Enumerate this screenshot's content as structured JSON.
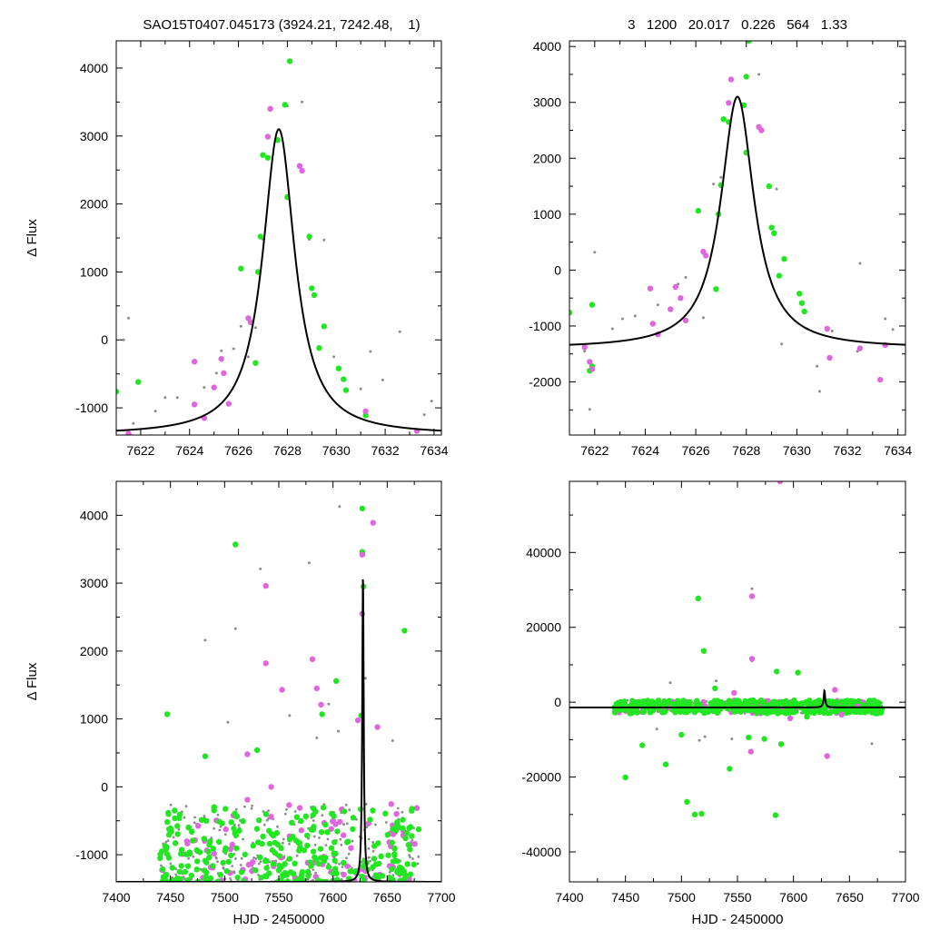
{
  "header": {
    "left_title": "SAO15T0407.045173 (3924.21, 7242.48,    1)",
    "right_title": "3   1200   20.017   0.226   564   1.33"
  },
  "colors": {
    "grey": "#8c8c8c",
    "green": "#22e622",
    "magenta": "#e066dd",
    "curve": "#000000"
  },
  "chart_data": [
    {
      "type": "scatter",
      "panel": "top-left",
      "xlabel": "",
      "ylabel": "Δ Flux",
      "xlim": [
        7621,
        7634.3
      ],
      "ylim": [
        -1400,
        4400
      ],
      "xticks": [
        7622,
        7624,
        7626,
        7628,
        7630,
        7632,
        7634
      ],
      "yticks": [
        -1000,
        0,
        1000,
        2000,
        3000,
        4000
      ],
      "model": {
        "t0": 7627.65,
        "peak": 3100,
        "base": -1400
      },
      "series": [
        {
          "color": "grey",
          "points": [
            [
              7621.3,
              0
            ],
            [
              7621.5,
              320
            ],
            [
              7621.7,
              -1230
            ],
            [
              7622.6,
              -1050
            ],
            [
              7623.0,
              -850
            ],
            [
              7623.5,
              -850
            ],
            [
              7624.6,
              -700
            ],
            [
              7625.1,
              -490
            ],
            [
              7625.3,
              -160
            ],
            [
              7625.8,
              -130
            ],
            [
              7626.1,
              200
            ],
            [
              7626.4,
              -250
            ],
            [
              7626.7,
              180
            ],
            [
              7627.0,
              1480
            ],
            [
              7628.0,
              3440
            ],
            [
              7628.6,
              3500
            ],
            [
              7628.9,
              1480
            ],
            [
              7629.5,
              1470
            ],
            [
              7629.9,
              -250
            ],
            [
              7631.0,
              -720
            ],
            [
              7631.4,
              -170
            ],
            [
              7631.9,
              -590
            ],
            [
              7632.6,
              120
            ],
            [
              7633.6,
              -1100
            ],
            [
              7633.9,
              -900
            ]
          ]
        },
        {
          "color": "green",
          "points": [
            [
              7621.0,
              -760
            ],
            [
              7621.9,
              -620
            ],
            [
              7626.1,
              1050
            ],
            [
              7626.7,
              -340
            ],
            [
              7626.8,
              1000
            ],
            [
              7626.9,
              1520
            ],
            [
              7627.0,
              2720
            ],
            [
              7627.2,
              2680
            ],
            [
              7627.6,
              2940
            ],
            [
              7627.9,
              3460
            ],
            [
              7628.0,
              2100
            ],
            [
              7628.1,
              4100
            ],
            [
              7628.9,
              1520
            ],
            [
              7629.0,
              760
            ],
            [
              7629.1,
              660
            ],
            [
              7629.3,
              -120
            ],
            [
              7629.5,
              200
            ],
            [
              7630.1,
              -420
            ],
            [
              7630.3,
              -580
            ],
            [
              7630.4,
              -740
            ],
            [
              7631.2,
              -1110
            ]
          ]
        },
        {
          "color": "magenta",
          "points": [
            [
              7621.5,
              -1380
            ],
            [
              7624.2,
              -320
            ],
            [
              7624.2,
              -950
            ],
            [
              7624.6,
              -1150
            ],
            [
              7625.0,
              -700
            ],
            [
              7625.3,
              -280
            ],
            [
              7625.4,
              -490
            ],
            [
              7625.6,
              -940
            ],
            [
              7626.4,
              320
            ],
            [
              7626.5,
              260
            ],
            [
              7627.2,
              2990
            ],
            [
              7627.3,
              3400
            ],
            [
              7628.5,
              2560
            ],
            [
              7628.6,
              2490
            ],
            [
              7631.2,
              -1050
            ],
            [
              7633.3,
              -1340
            ]
          ]
        }
      ]
    },
    {
      "type": "scatter",
      "panel": "top-right",
      "xlabel": "",
      "ylabel": "",
      "xlim": [
        7621,
        7634.3
      ],
      "ylim": [
        -2950,
        4100
      ],
      "xticks": [
        7622,
        7624,
        7626,
        7628,
        7630,
        7632,
        7634
      ],
      "yticks": [
        -2000,
        -1000,
        0,
        1000,
        2000,
        3000,
        4000
      ],
      "model": {
        "t0": 7627.65,
        "peak": 3100,
        "base": -1400
      },
      "series": [
        {
          "color": "grey",
          "points": [
            [
              7621.6,
              -1450
            ],
            [
              7621.8,
              -2490
            ],
            [
              7622.0,
              320
            ],
            [
              7622.7,
              -1050
            ],
            [
              7623.1,
              -870
            ],
            [
              7623.6,
              -820
            ],
            [
              7624.5,
              -620
            ],
            [
              7625.3,
              -250
            ],
            [
              7625.6,
              -130
            ],
            [
              7626.3,
              -850
            ],
            [
              7626.7,
              1540
            ],
            [
              7627.0,
              1660
            ],
            [
              7628.0,
              3440
            ],
            [
              7628.5,
              3500
            ],
            [
              7629.2,
              1450
            ],
            [
              7629.4,
              -1320
            ],
            [
              7630.4,
              -1050
            ],
            [
              7630.8,
              -1720
            ],
            [
              7630.9,
              -2170
            ],
            [
              7631.4,
              -1090
            ],
            [
              7632.5,
              120
            ],
            [
              7632.4,
              -1450
            ],
            [
              7633.5,
              -870
            ],
            [
              7633.8,
              -1060
            ]
          ]
        },
        {
          "color": "green",
          "points": [
            [
              7621.0,
              -760
            ],
            [
              7621.9,
              -620
            ],
            [
              7621.8,
              -1800
            ],
            [
              7621.9,
              -1720
            ],
            [
              7626.1,
              1060
            ],
            [
              7626.8,
              -340
            ],
            [
              7626.9,
              1000
            ],
            [
              7627.0,
              1520
            ],
            [
              7627.1,
              2700
            ],
            [
              7627.3,
              2650
            ],
            [
              7627.9,
              2950
            ],
            [
              7628.0,
              3460
            ],
            [
              7628.0,
              2100
            ],
            [
              7628.1,
              4100
            ],
            [
              7628.9,
              1500
            ],
            [
              7629.0,
              760
            ],
            [
              7629.1,
              660
            ],
            [
              7629.3,
              -100
            ],
            [
              7629.5,
              200
            ],
            [
              7630.1,
              -420
            ],
            [
              7630.2,
              -590
            ],
            [
              7630.3,
              -740
            ]
          ]
        },
        {
          "color": "magenta",
          "points": [
            [
              7621.6,
              -1380
            ],
            [
              7621.8,
              -1640
            ],
            [
              7621.9,
              -1770
            ],
            [
              7624.2,
              -330
            ],
            [
              7624.3,
              -960
            ],
            [
              7624.5,
              -1150
            ],
            [
              7625.0,
              -700
            ],
            [
              7625.2,
              -300
            ],
            [
              7625.4,
              -500
            ],
            [
              7625.6,
              -900
            ],
            [
              7626.3,
              330
            ],
            [
              7626.4,
              260
            ],
            [
              7627.3,
              2990
            ],
            [
              7627.4,
              3410
            ],
            [
              7628.5,
              2560
            ],
            [
              7628.6,
              2500
            ],
            [
              7631.2,
              -1050
            ],
            [
              7631.3,
              -1570
            ],
            [
              7632.5,
              -1400
            ],
            [
              7633.3,
              -1960
            ],
            [
              7633.5,
              -1340
            ]
          ]
        }
      ]
    },
    {
      "type": "scatter",
      "panel": "bottom-left",
      "xlabel": "HJD - 2450000",
      "ylabel": "Δ Flux",
      "xlim": [
        7400,
        7700
      ],
      "ylim": [
        -1400,
        4500
      ],
      "xticks": [
        7400,
        7450,
        7500,
        7550,
        7600,
        7650,
        7700
      ],
      "yticks": [
        -1000,
        0,
        1000,
        2000,
        3000,
        4000
      ],
      "model": {
        "t0": 7627.65,
        "peak": 3100,
        "base": -1400
      },
      "cloud": {
        "x": [
          7440,
          7680
        ],
        "y": [
          -1400,
          -250
        ],
        "counts": {
          "grey": 260,
          "green": 300,
          "magenta": 80
        }
      },
      "series": [
        {
          "color": "grey",
          "points": [
            [
              7482,
              2160
            ],
            [
              7510,
              2330
            ],
            [
              7533,
              3210
            ],
            [
              7578,
              3300
            ],
            [
              7606,
              4130
            ],
            [
              7503,
              950
            ],
            [
              7560,
              1050
            ],
            [
              7585,
              720
            ],
            [
              7630,
              1600
            ],
            [
              7655,
              680
            ],
            [
              7596,
              1220
            ],
            [
              7605,
              820
            ]
          ]
        },
        {
          "color": "green",
          "points": [
            [
              7447,
              1070
            ],
            [
              7510,
              3570
            ],
            [
              7627,
              4100
            ],
            [
              7627,
              3460
            ],
            [
              7628,
              2950
            ],
            [
              7666,
              2300
            ],
            [
              7603,
              1560
            ],
            [
              7590,
              1070
            ],
            [
              7626,
              1050
            ],
            [
              7530,
              540
            ],
            [
              7482,
              450
            ]
          ]
        },
        {
          "color": "magenta",
          "points": [
            [
              7637,
              3890
            ],
            [
              7627,
              3420
            ],
            [
              7627,
              2550
            ],
            [
              7538,
              2960
            ],
            [
              7538,
              1820
            ],
            [
              7581,
              1880
            ],
            [
              7585,
              1450
            ],
            [
              7589,
              1210
            ],
            [
              7641,
              880
            ],
            [
              7623,
              980
            ],
            [
              7521,
              480
            ],
            [
              7543,
              0
            ],
            [
              7521,
              -190
            ],
            [
              7553,
              1430
            ]
          ]
        }
      ]
    },
    {
      "type": "scatter",
      "panel": "bottom-right",
      "xlabel": "HJD - 2450000",
      "ylabel": "",
      "xlim": [
        7400,
        7700
      ],
      "ylim": [
        -48000,
        59000
      ],
      "xticks": [
        7400,
        7450,
        7500,
        7550,
        7600,
        7650,
        7700
      ],
      "yticks": [
        -40000,
        -20000,
        0,
        20000,
        40000
      ],
      "model": {
        "t0": 7627.65,
        "peak": 3100,
        "base": -1400
      },
      "band": {
        "x": [
          7440,
          7680
        ],
        "y": [
          -3000,
          500
        ],
        "counts": {
          "grey": 260,
          "green": 380,
          "magenta": 90
        }
      },
      "series": [
        {
          "color": "grey",
          "points": [
            [
              7563,
              30300
            ],
            [
              7563,
              11000
            ],
            [
              7585,
              8400
            ],
            [
              7531,
              5700
            ],
            [
              7490,
              5200
            ],
            [
              7670,
              -11100
            ],
            [
              7478,
              -7200
            ],
            [
              7516,
              -10200
            ],
            [
              7603,
              -2000
            ],
            [
              7545,
              -9800
            ],
            [
              7521,
              -9200
            ]
          ]
        },
        {
          "color": "green",
          "points": [
            [
              7515,
              27700
            ],
            [
              7520,
              13700
            ],
            [
              7585,
              8200
            ],
            [
              7604,
              7900
            ],
            [
              7450,
              -20100
            ],
            [
              7486,
              -16600
            ],
            [
              7505,
              -26600
            ],
            [
              7512,
              -30000
            ],
            [
              7518,
              -29800
            ],
            [
              7543,
              -17800
            ],
            [
              7584,
              -30200
            ],
            [
              7465,
              -11500
            ],
            [
              7500,
              -8700
            ],
            [
              7560,
              -9400
            ],
            [
              7574,
              -9800
            ],
            [
              7589,
              -11200
            ],
            [
              7612,
              -3900
            ],
            [
              7530,
              3700
            ]
          ]
        },
        {
          "color": "magenta",
          "points": [
            [
              7588,
              59000
            ],
            [
              7563,
              28300
            ],
            [
              7563,
              11600
            ],
            [
              7562,
              -13200
            ],
            [
              7630,
              -14400
            ],
            [
              7597,
              -4300
            ],
            [
              7637,
              3300
            ],
            [
              7643,
              -3300
            ],
            [
              7547,
              2500
            ]
          ]
        }
      ]
    }
  ]
}
